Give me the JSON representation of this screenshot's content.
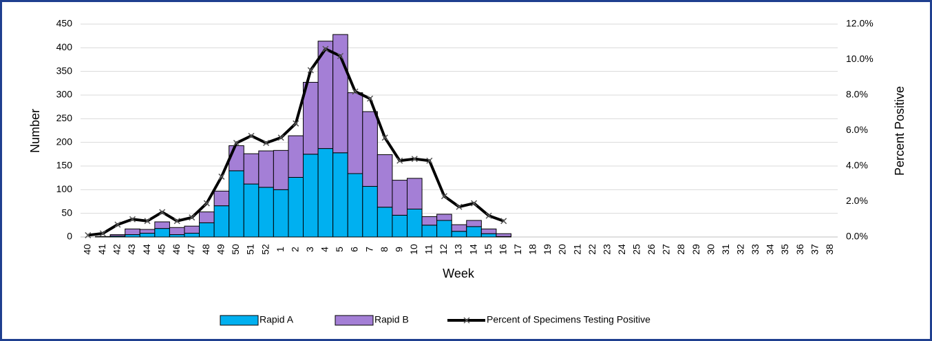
{
  "chart_data": {
    "type": "bar",
    "stacked": true,
    "x_label": "Week",
    "y_label": "Number",
    "y2_label": "Percent Positive",
    "categories": [
      "40",
      "41",
      "42",
      "43",
      "44",
      "45",
      "46",
      "47",
      "48",
      "49",
      "50",
      "51",
      "52",
      "1",
      "2",
      "3",
      "4",
      "5",
      "6",
      "7",
      "8",
      "9",
      "10",
      "11",
      "12",
      "13",
      "14",
      "15",
      "16",
      "17",
      "18",
      "19",
      "20",
      "21",
      "22",
      "23",
      "24",
      "25",
      "26",
      "27",
      "28",
      "29",
      "30",
      "31",
      "32",
      "33",
      "34",
      "35",
      "36",
      "37",
      "38"
    ],
    "series": [
      {
        "name": "Rapid A",
        "color": "#00b0f0",
        "values": [
          0,
          0,
          2,
          5,
          8,
          18,
          5,
          8,
          30,
          66,
          140,
          112,
          105,
          100,
          126,
          175,
          187,
          178,
          134,
          107,
          63,
          46,
          59,
          25,
          35,
          12,
          22,
          7,
          1,
          null,
          null,
          null,
          null,
          null,
          null,
          null,
          null,
          null,
          null,
          null,
          null,
          null,
          null,
          null,
          null,
          null,
          null,
          null,
          null,
          null,
          null
        ]
      },
      {
        "name": "Rapid B",
        "color": "#a47fd6",
        "values": [
          0,
          1,
          3,
          12,
          8,
          14,
          15,
          15,
          23,
          31,
          53,
          64,
          77,
          83,
          88,
          152,
          227,
          250,
          171,
          158,
          111,
          74,
          65,
          18,
          13,
          14,
          13,
          10,
          6,
          null,
          null,
          null,
          null,
          null,
          null,
          null,
          null,
          null,
          null,
          null,
          null,
          null,
          null,
          null,
          null,
          null,
          null,
          null,
          null,
          null,
          null
        ]
      },
      {
        "name": "Percent of Specimens Testing Positive",
        "type": "line",
        "axis": "y2",
        "color": "#000000",
        "values": [
          0.1,
          0.2,
          0.7,
          1.0,
          0.9,
          1.4,
          0.9,
          1.1,
          1.9,
          3.4,
          5.3,
          5.7,
          5.3,
          5.6,
          6.4,
          9.4,
          10.6,
          10.2,
          8.2,
          7.8,
          5.6,
          4.3,
          4.4,
          4.3,
          2.3,
          1.7,
          1.9,
          1.2,
          0.9,
          null,
          null,
          null,
          null,
          null,
          null,
          null,
          null,
          null,
          null,
          null,
          null,
          null,
          null,
          null,
          null,
          null,
          null,
          null,
          null,
          null,
          null
        ]
      }
    ],
    "ylim": [
      0,
      450
    ],
    "yticks": [
      0,
      50,
      100,
      150,
      200,
      250,
      300,
      350,
      400,
      450
    ],
    "y2lim": [
      0,
      12
    ],
    "y2ticks": [
      {
        "value": 0,
        "label": "0.0%"
      },
      {
        "value": 2,
        "label": "2.0%"
      },
      {
        "value": 4,
        "label": "4.0%"
      },
      {
        "value": 6,
        "label": "6.0%"
      },
      {
        "value": 8,
        "label": "8.0%"
      },
      {
        "value": 10,
        "label": "10.0%"
      },
      {
        "value": 12,
        "label": "12.0%"
      }
    ],
    "grid": true,
    "legend": "bottom"
  }
}
